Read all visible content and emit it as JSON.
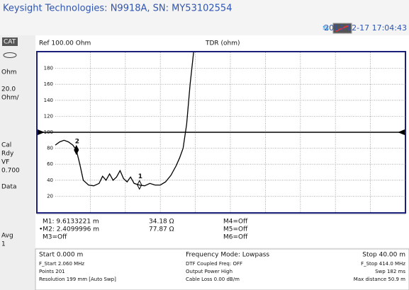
{
  "header": {
    "title": "Keysight Technologies: N9918A, SN: MY53102554",
    "datetime": "2019-12-17 17:04:43"
  },
  "sidebar": [
    "CAT",
    "Ohm",
    "20.0",
    "Ohm/",
    "Cal",
    "Rdy",
    "VF",
    "0.700",
    "Data",
    "Avg",
    "1"
  ],
  "plot": {
    "ref_label": "Ref 100.00 Ohm",
    "trace_label": "TDR (ohm)",
    "ref": 100,
    "xlim": [
      0,
      40
    ],
    "ylim": [
      0,
      200
    ],
    "yticks": [
      20,
      40,
      60,
      80,
      100,
      120,
      140,
      160,
      180
    ],
    "x": [
      0,
      0.5,
      1.0,
      1.5,
      2.0,
      2.4,
      2.8,
      3.2,
      3.8,
      4.4,
      5.0,
      5.4,
      5.8,
      6.2,
      6.6,
      7.0,
      7.4,
      7.8,
      8.2,
      8.6,
      9.0,
      9.6,
      10.2,
      10.8,
      11.4,
      12.0,
      12.6,
      13.2,
      13.8,
      14.2,
      14.6,
      15.0,
      15.4,
      15.8
    ],
    "values": [
      84,
      88,
      90,
      88,
      84,
      78,
      60,
      40,
      34,
      33,
      36,
      45,
      40,
      48,
      40,
      44,
      52,
      42,
      38,
      44,
      36,
      34,
      33,
      36,
      34,
      34,
      38,
      46,
      58,
      68,
      80,
      110,
      160,
      200
    ],
    "markers": [
      {
        "label": "1",
        "x": 9.6133221,
        "y": 34.18
      },
      {
        "label": "2",
        "x": 2.4099996,
        "y": 77.87
      }
    ]
  },
  "marker_table": [
    [
      "M1: 9.6133221  m",
      "34.18 Ω",
      "M4=Off"
    ],
    [
      "•M2: 2.4099996  m",
      "77.87 Ω",
      "M5=Off"
    ],
    [
      "M3=Off",
      "",
      "M6=Off"
    ]
  ],
  "footer": {
    "start": "Start 0.000 m",
    "mode": "Frequency Mode: Lowpass",
    "stop": "Stop 40.00 m",
    "left": [
      "F_Start 2.060 MHz",
      "Points 201",
      "Resolution 199 mm  [Auto Swp]"
    ],
    "center": [
      "DTF Coupled Freq:  OFF",
      "Output Power High",
      "Cable Loss 0.00  dB/m"
    ],
    "right": [
      "F_Stop 414.0 MHz",
      "Swp 182 ms",
      "Max distance 50.9  m"
    ]
  }
}
